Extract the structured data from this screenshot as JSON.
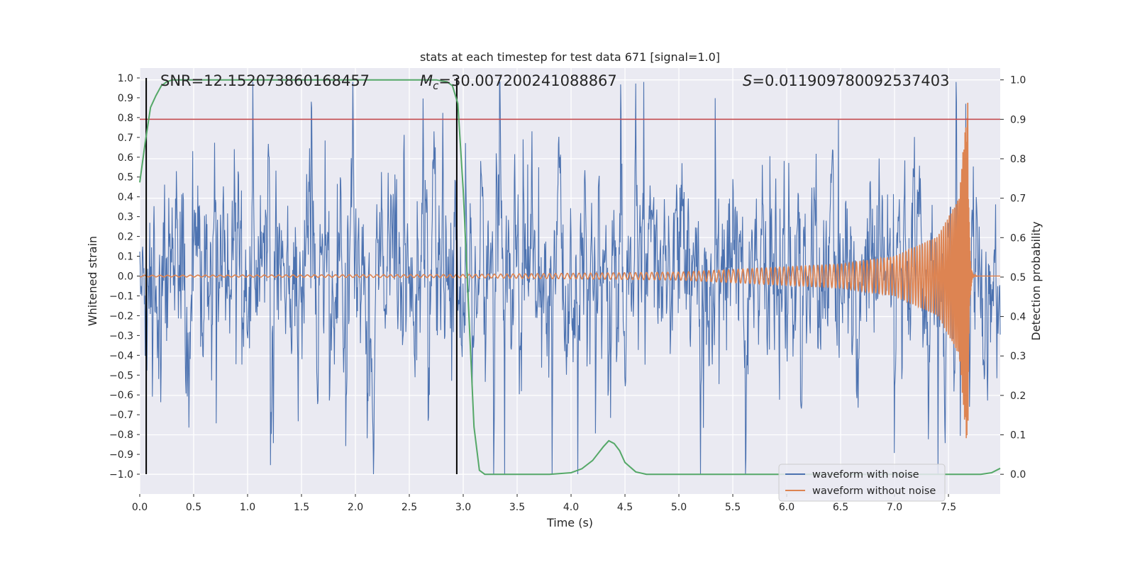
{
  "chart_data": {
    "type": "line",
    "title": "stats at each timestep for test data 671 [signal=1.0]",
    "xlabel": "Time (s)",
    "ylabel": "Whitened strain",
    "y2label": "Detection probability",
    "xlim": [
      0.0,
      7.98
    ],
    "ylim": [
      -1.1,
      1.05
    ],
    "y2lim": [
      -0.05,
      1.03
    ],
    "xticks": [
      "0.0",
      "0.5",
      "1.0",
      "1.5",
      "2.0",
      "2.5",
      "3.0",
      "3.5",
      "4.0",
      "4.5",
      "5.0",
      "5.5",
      "6.0",
      "6.5",
      "7.0",
      "7.5"
    ],
    "yticks": [
      "1.0",
      "0.9",
      "0.8",
      "0.7",
      "0.6",
      "0.5",
      "0.4",
      "0.3",
      "0.2",
      "0.1",
      "0.0",
      "−0.1",
      "−0.2",
      "−0.3",
      "−0.4",
      "−0.5",
      "−0.6",
      "−0.7",
      "−0.8",
      "−0.9",
      "−1.0"
    ],
    "y2ticks": [
      "1.0",
      "0.9",
      "0.8",
      "0.7",
      "0.6",
      "0.5",
      "0.4",
      "0.3",
      "0.2",
      "0.1",
      "0.0"
    ],
    "annotations": {
      "snr": "SNR=12.152073860168457",
      "mc": "M c=30.007200241088867",
      "mc_symbol": "M",
      "mc_sub": "c",
      "mc_value": "=30.007200241088867",
      "s_symbol": "S",
      "s_value": "=0.011909780092537403"
    },
    "threshold": {
      "y2": 0.9,
      "color": "#c44e52"
    },
    "vlines": [
      0.06,
      2.94
    ],
    "series": [
      {
        "name": "waveform with noise",
        "color": "#4c72b0",
        "kind": "noise",
        "samples": 2048,
        "envelope_typical": 0.45,
        "peak_max": 0.98,
        "min": -1.0
      },
      {
        "name": "waveform without noise",
        "color": "#dd8452",
        "kind": "chirp",
        "t_start": 0.0,
        "t_merger": 7.68,
        "amp_points": [
          [
            0.0,
            0.004
          ],
          [
            3.0,
            0.008
          ],
          [
            5.0,
            0.02
          ],
          [
            6.5,
            0.06
          ],
          [
            7.0,
            0.1
          ],
          [
            7.4,
            0.2
          ],
          [
            7.6,
            0.4
          ],
          [
            7.66,
            0.8
          ],
          [
            7.68,
            0.88
          ]
        ]
      },
      {
        "name": "detection probability",
        "color": "#55a868",
        "kind": "prob",
        "axis": "y2",
        "x": [
          0.0,
          0.05,
          0.1,
          0.15,
          0.2,
          0.25,
          0.3,
          0.4,
          0.5,
          1.0,
          2.0,
          2.5,
          2.75,
          2.85,
          2.9,
          2.95,
          3.0,
          3.05,
          3.1,
          3.15,
          3.2,
          3.5,
          3.8,
          4.0,
          4.1,
          4.2,
          4.3,
          4.35,
          4.4,
          4.45,
          4.5,
          4.6,
          4.7,
          5.0,
          6.0,
          7.0,
          7.5,
          7.8,
          7.9,
          7.98
        ],
        "y": [
          0.74,
          0.84,
          0.93,
          0.96,
          0.985,
          0.995,
          1.0,
          1.0,
          1.0,
          1.0,
          1.0,
          1.0,
          1.0,
          0.995,
          0.985,
          0.94,
          0.72,
          0.42,
          0.12,
          0.01,
          0.0,
          0.0,
          0.0,
          0.004,
          0.014,
          0.035,
          0.07,
          0.085,
          0.078,
          0.06,
          0.03,
          0.006,
          0.0,
          0.0,
          0.0,
          0.0,
          0.0,
          0.0,
          0.004,
          0.015
        ]
      }
    ],
    "legend": {
      "position": "bottom-right",
      "entries": [
        "waveform with noise",
        "waveform without noise"
      ]
    },
    "grid": true,
    "background": "#eaeaf2"
  }
}
